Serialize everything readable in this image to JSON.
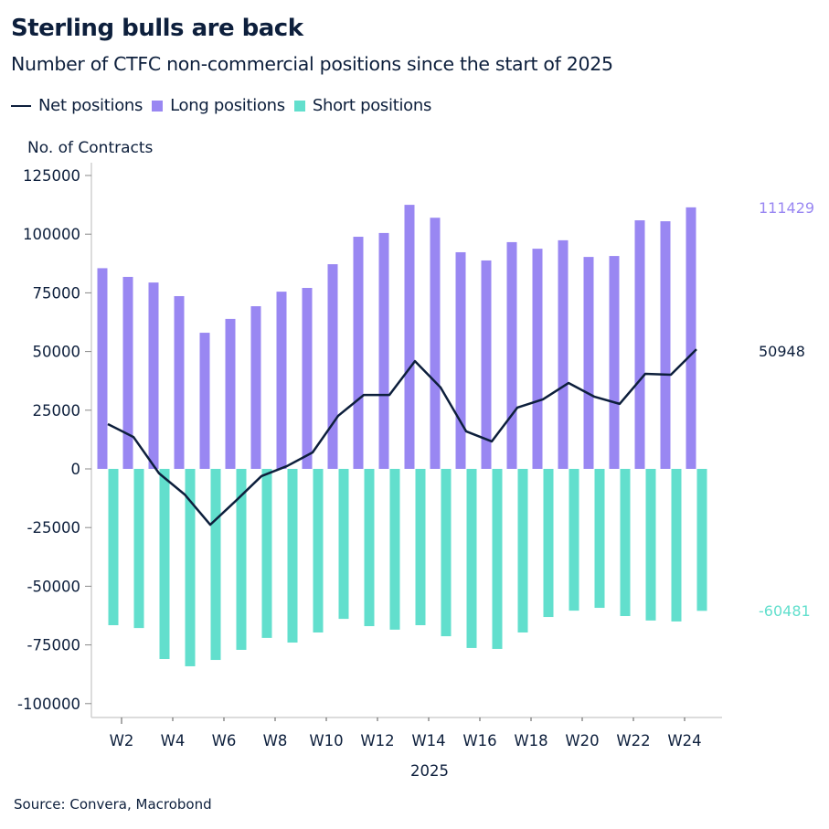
{
  "title": "Sterling bulls are back",
  "subtitle": "Number of CTFC non-commercial positions since the start of 2025",
  "source": "Source: Convera, Macrobond",
  "colors": {
    "net": "#0d1f3c",
    "long": "#9987f2",
    "short": "#62dfcd"
  },
  "chart_data": {
    "type": "bar",
    "title": "Sterling bulls are back",
    "subtitle": "Number of CTFC non-commercial positions since the start of 2025",
    "ylabel": "No. of Contracts",
    "xlabel": "2025",
    "ylim": [
      -100000,
      125000
    ],
    "yticks": [
      "125000",
      "100000",
      "75000",
      "50000",
      "25000",
      "0",
      "-25000",
      "-50000",
      "-75000",
      "-100000"
    ],
    "ytick_values": [
      125000,
      100000,
      75000,
      50000,
      25000,
      0,
      -25000,
      -50000,
      -75000,
      -100000
    ],
    "xticks": [
      "W2",
      "W4",
      "W6",
      "W8",
      "W10",
      "W12",
      "W14",
      "W16",
      "W18",
      "W20",
      "W22",
      "W24"
    ],
    "categories": [
      "W1",
      "W2",
      "W3",
      "W4",
      "W5",
      "W6",
      "W7",
      "W8",
      "W9",
      "W10",
      "W11",
      "W12",
      "W13",
      "W14",
      "W15",
      "W16",
      "W17",
      "W18",
      "W19",
      "W20",
      "W21",
      "W22",
      "W23",
      "W24"
    ],
    "legend_position": "top-left",
    "grid": false,
    "series": [
      {
        "name": "Net positions",
        "type": "line",
        "values": [
          19100,
          13600,
          -1900,
          -10900,
          -23800,
          -13600,
          -3100,
          1200,
          7000,
          22600,
          31500,
          31500,
          45900,
          34700,
          16000,
          11700,
          26100,
          29600,
          36600,
          30800,
          27700,
          40500,
          40100,
          50948
        ]
      },
      {
        "name": "Long positions",
        "type": "bar",
        "values": [
          85500,
          81800,
          79400,
          73600,
          58000,
          63900,
          69300,
          75500,
          77100,
          87200,
          98900,
          100500,
          112500,
          107000,
          92300,
          88800,
          96600,
          93800,
          97400,
          90300,
          90700,
          105900,
          105500,
          111429
        ]
      },
      {
        "name": "Short positions",
        "type": "bar",
        "values": [
          -66600,
          -67800,
          -81000,
          -84100,
          -81400,
          -77100,
          -72000,
          -74000,
          -69700,
          -63900,
          -67000,
          -68500,
          -66600,
          -71300,
          -76300,
          -76700,
          -69700,
          -63100,
          -60400,
          -59200,
          -62700,
          -64600,
          -65000,
          -60481
        ]
      }
    ],
    "end_labels": {
      "long": "111429",
      "net": "50948",
      "short": "-60481"
    }
  }
}
